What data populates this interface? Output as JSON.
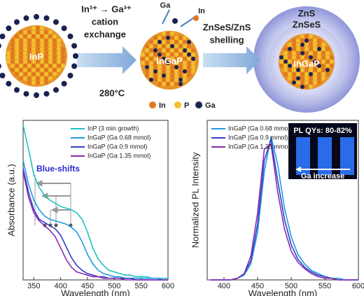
{
  "schematic": {
    "core_label": "InP",
    "exchange_reaction": "In³⁺ → Ga³⁺",
    "exchange_line1": "cation",
    "exchange_line2": "exchange",
    "temperature": "280°C",
    "ga_label": "Ga",
    "in_label": "In",
    "middle_label": "InGaP",
    "shelling_line1": "ZnSeS/ZnS",
    "shelling_line2": "shelling",
    "outer_shell": "ZnS",
    "inner_shell": "ZnSeS",
    "final_label": "InGaP",
    "legend": [
      "In",
      "P",
      "Ga"
    ]
  },
  "chart_data": [
    {
      "type": "line",
      "xlabel": "Wavelength (nm)",
      "ylabel": "Absorbance (a.u.)",
      "xlim": [
        330,
        600
      ],
      "xticks": [
        350,
        400,
        450,
        500,
        550,
        600
      ],
      "ylim": [
        0,
        1
      ],
      "legend": "upper right",
      "annotation": "Blue-shifts",
      "x": [
        330,
        340,
        350,
        360,
        370,
        380,
        390,
        400,
        410,
        420,
        430,
        440,
        450,
        460,
        470,
        480,
        490,
        500,
        510,
        520,
        530,
        540,
        550,
        560,
        570,
        580,
        590,
        600
      ],
      "series": [
        {
          "name": "InP (3 min growth)",
          "color": "#20c0c0",
          "values": [
            0.97,
            0.82,
            0.66,
            0.58,
            0.53,
            0.5,
            0.48,
            0.46,
            0.45,
            0.44,
            0.42,
            0.38,
            0.3,
            0.2,
            0.13,
            0.09,
            0.06,
            0.05,
            0.04,
            0.03,
            0.03,
            0.02,
            0.02,
            0.02,
            0.01,
            0.01,
            0.01,
            0.01
          ]
        },
        {
          "name": "InGaP (Ga 0.68 mmol)",
          "color": "#1e9be0",
          "values": [
            0.75,
            0.6,
            0.5,
            0.44,
            0.4,
            0.38,
            0.37,
            0.36,
            0.35,
            0.33,
            0.3,
            0.24,
            0.16,
            0.1,
            0.06,
            0.04,
            0.03,
            0.02,
            0.02,
            0.01,
            0.01,
            0.01,
            0.01,
            0.01,
            0.01,
            0.01,
            0,
            0
          ]
        },
        {
          "name": "InGaP (Ga 0.9 mmol)",
          "color": "#2f3fc8",
          "values": [
            0.7,
            0.55,
            0.44,
            0.38,
            0.36,
            0.34,
            0.32,
            0.28,
            0.21,
            0.14,
            0.09,
            0.06,
            0.04,
            0.03,
            0.02,
            0.02,
            0.01,
            0.01,
            0.01,
            0.01,
            0.01,
            0,
            0,
            0,
            0,
            0,
            0,
            0
          ]
        },
        {
          "name": "InGaP (Ga 1.35 mmol)",
          "color": "#8a2ab0",
          "values": [
            0.68,
            0.52,
            0.42,
            0.37,
            0.34,
            0.31,
            0.27,
            0.2,
            0.13,
            0.08,
            0.05,
            0.04,
            0.03,
            0.02,
            0.02,
            0.01,
            0.01,
            0.01,
            0.01,
            0,
            0,
            0,
            0,
            0,
            0,
            0,
            0,
            0
          ]
        }
      ]
    },
    {
      "type": "line",
      "xlabel": "Wavelength (nm)",
      "ylabel": "Normalized PL Intensity",
      "xlim": [
        375,
        600
      ],
      "xticks": [
        400,
        450,
        500,
        550,
        600
      ],
      "ylim": [
        0,
        1
      ],
      "legend": "upper left",
      "inset_title": "PL QYs: 80-82%",
      "inset_label": "Ga increase",
      "x": [
        380,
        390,
        400,
        410,
        420,
        430,
        440,
        450,
        460,
        470,
        480,
        490,
        500,
        510,
        520,
        530,
        540,
        550,
        560,
        570,
        580,
        590,
        600
      ],
      "series": [
        {
          "name": "InGaP (Ga 0.68 mmol)",
          "color": "#1e9be0",
          "values": [
            0,
            0,
            0,
            0,
            0.01,
            0.03,
            0.1,
            0.3,
            0.68,
            0.9,
            0.72,
            0.45,
            0.27,
            0.16,
            0.1,
            0.06,
            0.04,
            0.02,
            0.01,
            0.01,
            0,
            0,
            0
          ]
        },
        {
          "name": "InGaP (Ga 0.9 mmol)",
          "color": "#2f3fc8",
          "values": [
            0,
            0,
            0,
            0,
            0.01,
            0.04,
            0.12,
            0.35,
            0.75,
            0.88,
            0.62,
            0.38,
            0.22,
            0.13,
            0.08,
            0.05,
            0.03,
            0.02,
            0.01,
            0,
            0,
            0,
            0
          ]
        },
        {
          "name": "InGaP (Ga 1.35 mmol)",
          "color": "#8a2ab0",
          "values": [
            0,
            0,
            0,
            0,
            0.01,
            0.04,
            0.15,
            0.42,
            0.82,
            0.85,
            0.55,
            0.32,
            0.18,
            0.11,
            0.07,
            0.04,
            0.02,
            0.01,
            0.01,
            0,
            0,
            0,
            0
          ]
        }
      ]
    }
  ]
}
